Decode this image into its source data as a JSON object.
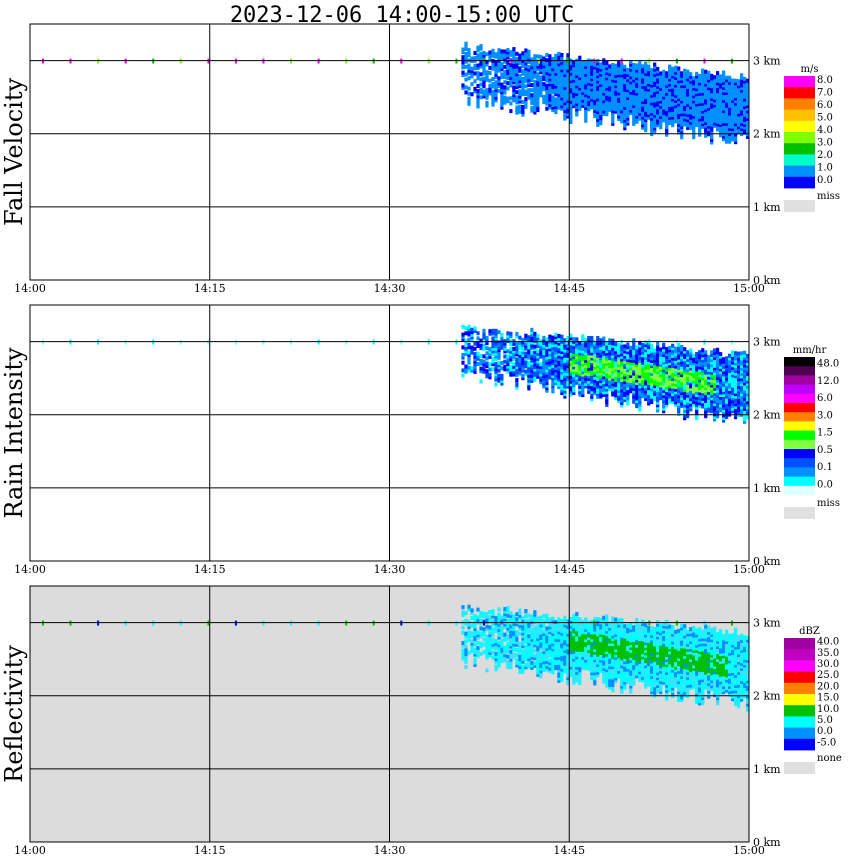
{
  "title": "2023-12-06   14:00-15:00 UTC",
  "chart_data": [
    {
      "type": "heatmap",
      "ylabel": "Fall Velocity",
      "x_ticks": [
        "14:00",
        "14:15",
        "14:30",
        "14:45",
        "15:00"
      ],
      "y_ticks": [
        "0 km",
        "1 km",
        "2 km",
        "3 km"
      ],
      "x_range_minutes": [
        0,
        60
      ],
      "y_range_km": [
        0,
        3.5
      ],
      "grid": true,
      "background": "#ffffff",
      "legend": {
        "unit": "m/s",
        "labels": [
          "8.0",
          "7.0",
          "6.0",
          "5.0",
          "4.0",
          "3.0",
          "2.0",
          "1.0",
          "0.0"
        ],
        "colors": [
          "#ff00ff",
          "#ff0000",
          "#ff7f00",
          "#ffc000",
          "#ffff00",
          "#7fff00",
          "#00c000",
          "#00ffcc",
          "#0090ff",
          "#0000ff"
        ],
        "missing_label": "miss",
        "missing_color": "#e0e0e0"
      },
      "echo": {
        "start_min": 36,
        "end_min": 60,
        "top_start_km": 3.2,
        "top_end_km": 2.75,
        "base_start_km": 2.45,
        "base_end_km": 1.85
      },
      "echo_colors": [
        "#0090ff",
        "#0090ff",
        "#0090ff",
        "#0000ff"
      ],
      "near_3km_colors": [
        "#7fff00",
        "#00c000",
        "#ff00ff"
      ]
    },
    {
      "type": "heatmap",
      "ylabel": "Rain Intensity",
      "x_ticks": [
        "14:00",
        "14:15",
        "14:30",
        "14:45",
        "15:00"
      ],
      "y_ticks": [
        "0 km",
        "1 km",
        "2 km",
        "3 km"
      ],
      "x_range_minutes": [
        0,
        60
      ],
      "y_range_km": [
        0,
        3.5
      ],
      "grid": true,
      "background": "#ffffff",
      "legend": {
        "unit": "mm/hr",
        "labels": [
          "48.0",
          "12.0",
          "6.0",
          "3.0",
          "1.5",
          "0.5",
          "0.1",
          "0.0"
        ],
        "colors": [
          "#000000",
          "#500050",
          "#a000a0",
          "#c000ff",
          "#ff00ff",
          "#ff0000",
          "#ff7f00",
          "#ffff00",
          "#00ff00",
          "#80ff40",
          "#0000ff",
          "#0050ff",
          "#0090ff",
          "#00ffff",
          "#e0ffff"
        ],
        "missing_label": "miss",
        "missing_color": "#e0e0e0"
      },
      "echo": {
        "start_min": 36,
        "end_min": 60,
        "top_start_km": 3.2,
        "top_end_km": 2.8,
        "base_start_km": 2.55,
        "base_end_km": 1.85
      },
      "echo_colors": [
        "#0000ff",
        "#0050ff",
        "#0090ff",
        "#00ffff"
      ],
      "core": {
        "start_min": 45,
        "end_min": 57,
        "km_start": 2.7,
        "km_end": 2.4,
        "colors": [
          "#00ff00",
          "#80ff40"
        ]
      },
      "near_3km_colors": [
        "#00ffff",
        "#80ffff"
      ]
    },
    {
      "type": "heatmap",
      "ylabel": "Reflectivity",
      "x_ticks": [
        "14:00",
        "14:15",
        "14:30",
        "14:45",
        "15:00"
      ],
      "y_ticks": [
        "0 km",
        "1 km",
        "2 km",
        "3 km"
      ],
      "x_range_minutes": [
        0,
        60
      ],
      "y_range_km": [
        0,
        3.5
      ],
      "grid": true,
      "background": "#dcdcdc",
      "legend": {
        "unit": "dBZ",
        "labels": [
          "40.0",
          "35.0",
          "30.0",
          "25.0",
          "20.0",
          "15.0",
          "10.0",
          "5.0",
          "0.0",
          "-5.0"
        ],
        "colors": [
          "#a000a0",
          "#c000c0",
          "#ff00ff",
          "#ff0000",
          "#ff7f00",
          "#ffff00",
          "#00c000",
          "#00ffff",
          "#0090ff",
          "#0000ff"
        ],
        "missing_label": "none",
        "missing_color": "#e0e0e0"
      },
      "echo": {
        "start_min": 36,
        "end_min": 60,
        "top_start_km": 3.2,
        "top_end_km": 2.85,
        "base_start_km": 2.45,
        "base_end_km": 1.85
      },
      "echo_colors": [
        "#00ffff",
        "#00ffff",
        "#0090ff",
        "#40e0ff"
      ],
      "core": {
        "start_min": 45,
        "end_min": 58,
        "km_start": 2.75,
        "km_end": 2.4,
        "colors": [
          "#00c000",
          "#00c000"
        ]
      },
      "near_3km_colors": [
        "#00c000",
        "#00ffff",
        "#0000ff"
      ]
    }
  ]
}
